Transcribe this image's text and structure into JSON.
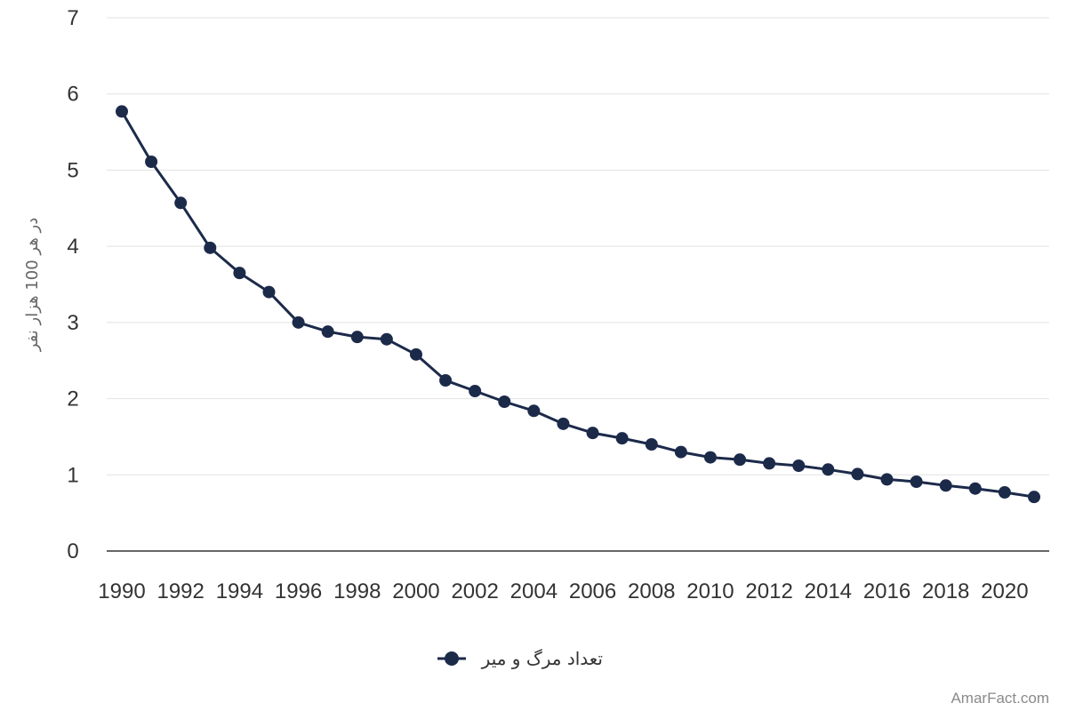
{
  "chart_data": {
    "type": "line",
    "ylabel": "در هر 100 هزار نفر",
    "ylim": [
      0,
      7
    ],
    "yticks": [
      0,
      1,
      2,
      3,
      4,
      5,
      6,
      7
    ],
    "xlim": [
      1990,
      2021
    ],
    "xticks": [
      1990,
      1992,
      1994,
      1996,
      1998,
      2000,
      2002,
      2004,
      2006,
      2008,
      2010,
      2012,
      2014,
      2016,
      2018,
      2020
    ],
    "grid": true,
    "legend_position": "bottom",
    "series": [
      {
        "name": "تعداد مرگ و میر",
        "color": "#1c2a4a",
        "x": [
          1990,
          1991,
          1992,
          1993,
          1994,
          1995,
          1996,
          1997,
          1998,
          1999,
          2000,
          2001,
          2002,
          2003,
          2004,
          2005,
          2006,
          2007,
          2008,
          2009,
          2010,
          2011,
          2012,
          2013,
          2014,
          2015,
          2016,
          2017,
          2018,
          2019,
          2020,
          2021
        ],
        "values": [
          5.77,
          5.11,
          4.57,
          3.98,
          3.65,
          3.4,
          3.0,
          2.88,
          2.81,
          2.78,
          2.58,
          2.24,
          2.1,
          1.96,
          1.84,
          1.67,
          1.55,
          1.48,
          1.4,
          1.3,
          1.23,
          1.2,
          1.15,
          1.12,
          1.07,
          1.01,
          0.94,
          0.91,
          0.86,
          0.82,
          0.77,
          0.71
        ]
      }
    ]
  },
  "watermark": "AmarFact.com"
}
